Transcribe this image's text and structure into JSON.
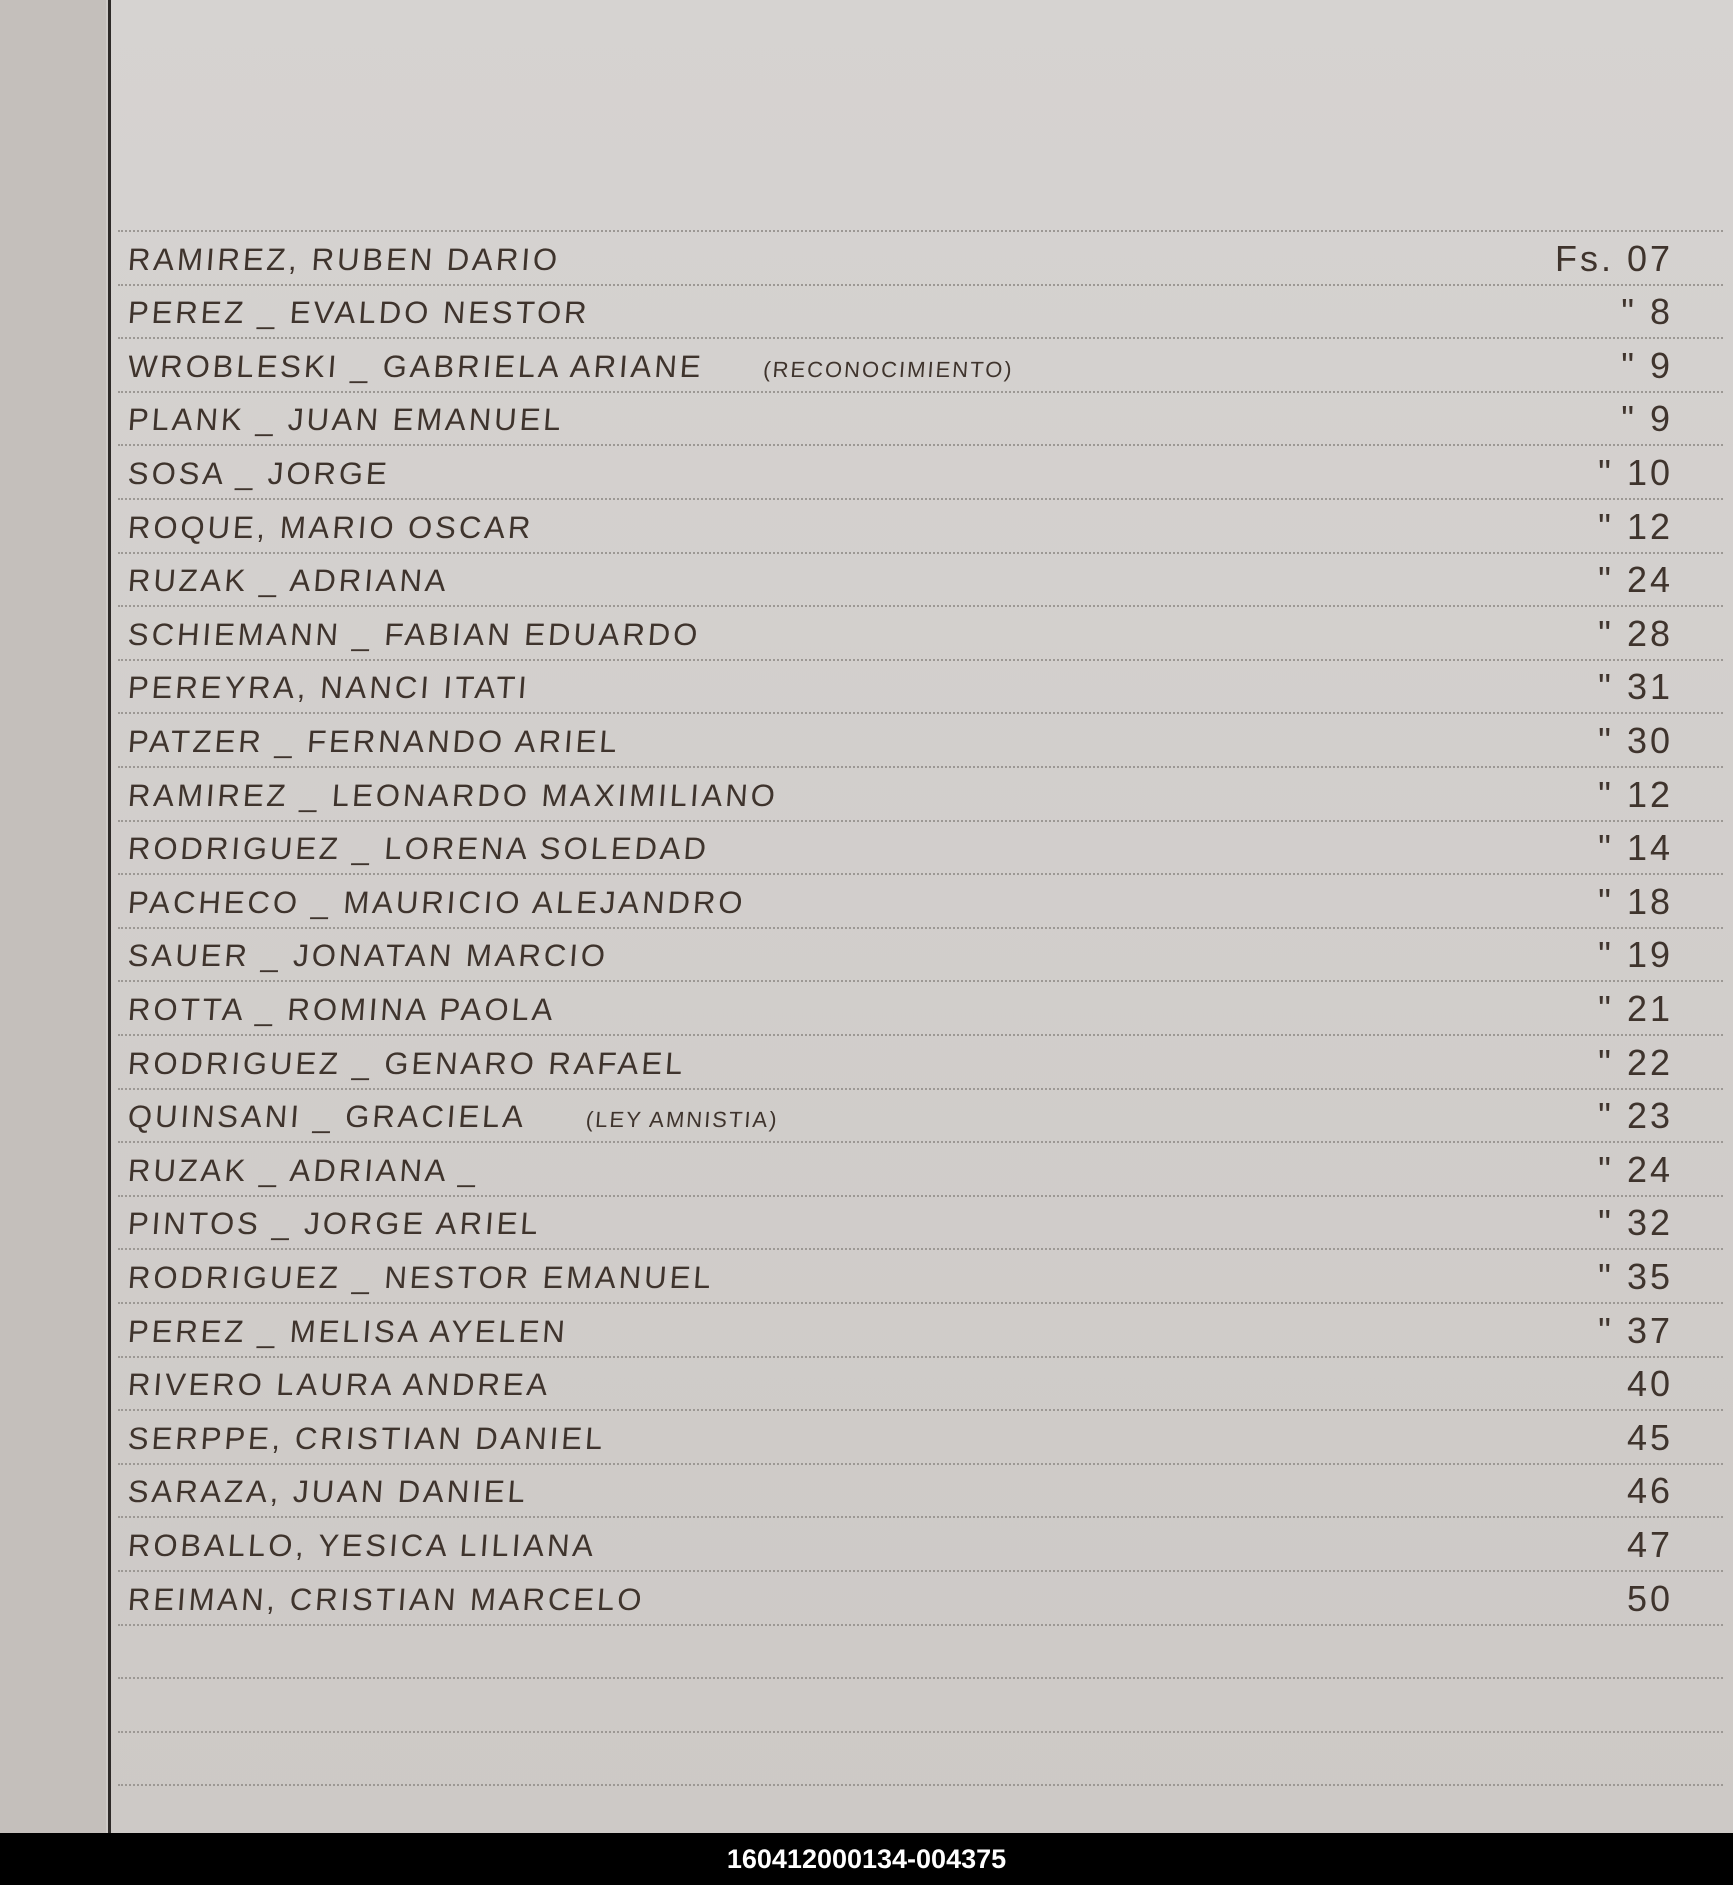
{
  "entries": [
    {
      "name": "RAMIREZ, RUBEN DARIO",
      "note": "",
      "folio": "Fs. 07"
    },
    {
      "name": "PEREZ _ EVALDO NESTOR",
      "note": "",
      "folio": "\" 8"
    },
    {
      "name": "WROBLESKI _ GABRIELA ARIANE",
      "note": "(RECONOCIMIENTO)",
      "folio": "\" 9"
    },
    {
      "name": "PLANK _ JUAN EMANUEL",
      "note": "",
      "folio": "\" 9"
    },
    {
      "name": "SOSA _ JORGE",
      "note": "",
      "folio": "\" 10"
    },
    {
      "name": "ROQUE, MARIO OSCAR",
      "note": "",
      "folio": "\" 12"
    },
    {
      "name": "RUZAK _ ADRIANA",
      "note": "",
      "folio": "\" 24"
    },
    {
      "name": "SCHIEMANN _ FABIAN EDUARDO",
      "note": "",
      "folio": "\" 28"
    },
    {
      "name": "PEREYRA, NANCI ITATI",
      "note": "",
      "folio": "\" 31"
    },
    {
      "name": "PATZER _ FERNANDO ARIEL",
      "note": "",
      "folio": "\" 30"
    },
    {
      "name": "RAMIREZ _ LEONARDO MAXIMILIANO",
      "note": "",
      "folio": "\" 12"
    },
    {
      "name": "RODRIGUEZ _ LORENA SOLEDAD",
      "note": "",
      "folio": "\" 14"
    },
    {
      "name": "PACHECO _ MAURICIO ALEJANDRO",
      "note": "",
      "folio": "\" 18"
    },
    {
      "name": "SAUER _ JONATAN MARCIO",
      "note": "",
      "folio": "\" 19"
    },
    {
      "name": "ROTTA _ ROMINA PAOLA",
      "note": "",
      "folio": "\" 21"
    },
    {
      "name": "RODRIGUEZ _ GENARO RAFAEL",
      "note": "",
      "folio": "\" 22"
    },
    {
      "name": "QUINSANI _ GRACIELA",
      "note": "(LEY AMNISTIA)",
      "folio": "\" 23"
    },
    {
      "name": "RUZAK _ ADRIANA _",
      "note": "",
      "folio": "\" 24"
    },
    {
      "name": "PINTOS _ JORGE ARIEL",
      "note": "",
      "folio": "\" 32"
    },
    {
      "name": "RODRIGUEZ _ NESTOR EMANUEL",
      "note": "",
      "folio": "\" 35"
    },
    {
      "name": "PEREZ _ MELISA AYELEN",
      "note": "",
      "folio": "\" 37"
    },
    {
      "name": "RIVERO LAURA ANDREA",
      "note": "",
      "folio": "40"
    },
    {
      "name": "SERPPE, CRISTIAN DANIEL",
      "note": "",
      "folio": "45"
    },
    {
      "name": "SARAZA, JUAN DANIEL",
      "note": "",
      "folio": "46"
    },
    {
      "name": "ROBALLO, YESICA LILIANA",
      "note": "",
      "folio": "47"
    },
    {
      "name": "REIMAN, CRISTIAN MARCELO",
      "note": "",
      "folio": "50"
    }
  ],
  "footer": {
    "id_label": "160412000134-004375"
  },
  "colors": {
    "ink": "#3f342d",
    "paper": "#d3d0ce",
    "footer_bg": "#000000"
  }
}
